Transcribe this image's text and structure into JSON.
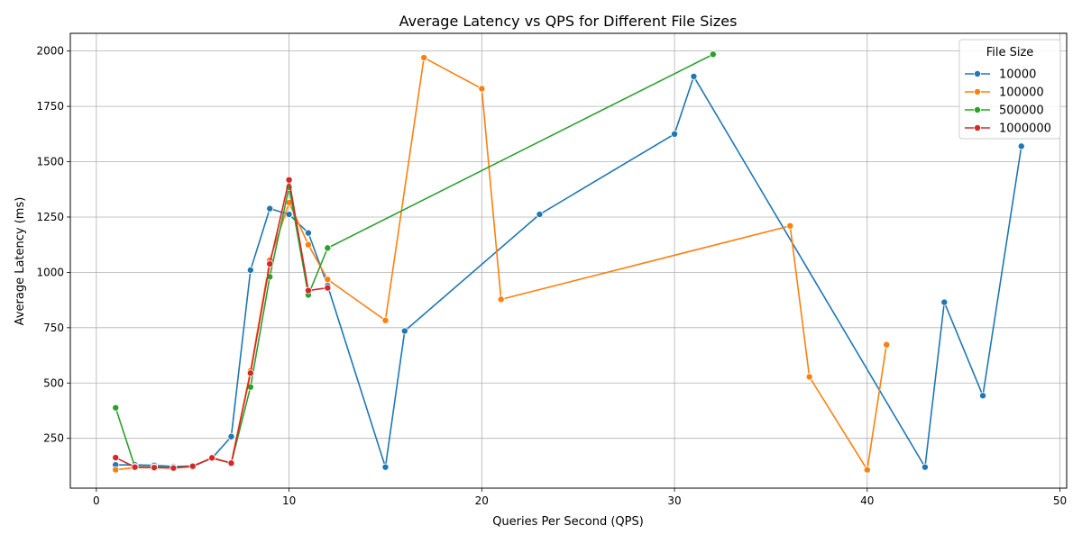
{
  "chart_data": {
    "type": "line",
    "title": "Average Latency vs QPS for Different File Sizes",
    "xlabel": "Queries Per Second (QPS)",
    "ylabel": "Average Latency (ms)",
    "xlim": [
      -1.35,
      50.35
    ],
    "ylim": [
      25,
      2080
    ],
    "xticks": [
      0,
      10,
      20,
      30,
      40,
      50
    ],
    "yticks": [
      250,
      500,
      750,
      1000,
      1250,
      1500,
      1750,
      2000
    ],
    "grid": true,
    "legend": {
      "title": "File Size",
      "placement": "top-right"
    },
    "series": [
      {
        "name": "10000",
        "color": "#1f77b4",
        "points": [
          [
            1,
            130
          ],
          [
            2,
            130
          ],
          [
            3,
            128
          ],
          [
            4,
            123
          ],
          [
            5,
            125
          ],
          [
            6,
            160
          ],
          [
            7,
            258
          ],
          [
            8,
            1010
          ],
          [
            9,
            1288
          ],
          [
            10,
            1262
          ],
          [
            11,
            1178
          ],
          [
            12,
            940
          ],
          [
            15,
            120
          ],
          [
            16,
            735
          ],
          [
            23,
            1262
          ],
          [
            30,
            1625
          ],
          [
            31,
            1885
          ],
          [
            43,
            120
          ],
          [
            44,
            865
          ],
          [
            46,
            443
          ],
          [
            48,
            1570
          ]
        ]
      },
      {
        "name": "100000",
        "color": "#ff7f0e",
        "points": [
          [
            1,
            108
          ],
          [
            2,
            118
          ],
          [
            3,
            120
          ],
          [
            4,
            116
          ],
          [
            5,
            122
          ],
          [
            6,
            162
          ],
          [
            7,
            138
          ],
          [
            8,
            555
          ],
          [
            9,
            1055
          ],
          [
            10,
            1315
          ],
          [
            11,
            1125
          ],
          [
            12,
            968
          ],
          [
            15,
            783
          ],
          [
            17,
            1970
          ],
          [
            20,
            1830
          ],
          [
            21,
            878
          ],
          [
            36,
            1210
          ],
          [
            37,
            528
          ],
          [
            40,
            108
          ],
          [
            41,
            673
          ]
        ]
      },
      {
        "name": "500000",
        "color": "#2ca02c",
        "points": [
          [
            1,
            388
          ],
          [
            2,
            122
          ],
          [
            3,
            120
          ],
          [
            4,
            118
          ],
          [
            5,
            124
          ],
          [
            6,
            160
          ],
          [
            7,
            138
          ],
          [
            8,
            482
          ],
          [
            9,
            980
          ],
          [
            10,
            1385
          ],
          [
            11,
            898
          ],
          [
            12,
            1110
          ],
          [
            32,
            1985
          ]
        ]
      },
      {
        "name": "1000000",
        "color": "#d62728",
        "points": [
          [
            1,
            163
          ],
          [
            2,
            120
          ],
          [
            3,
            118
          ],
          [
            4,
            116
          ],
          [
            5,
            124
          ],
          [
            6,
            162
          ],
          [
            7,
            138
          ],
          [
            8,
            545
          ],
          [
            9,
            1038
          ],
          [
            10,
            1418
          ],
          [
            11,
            918
          ],
          [
            12,
            930
          ]
        ]
      }
    ]
  }
}
